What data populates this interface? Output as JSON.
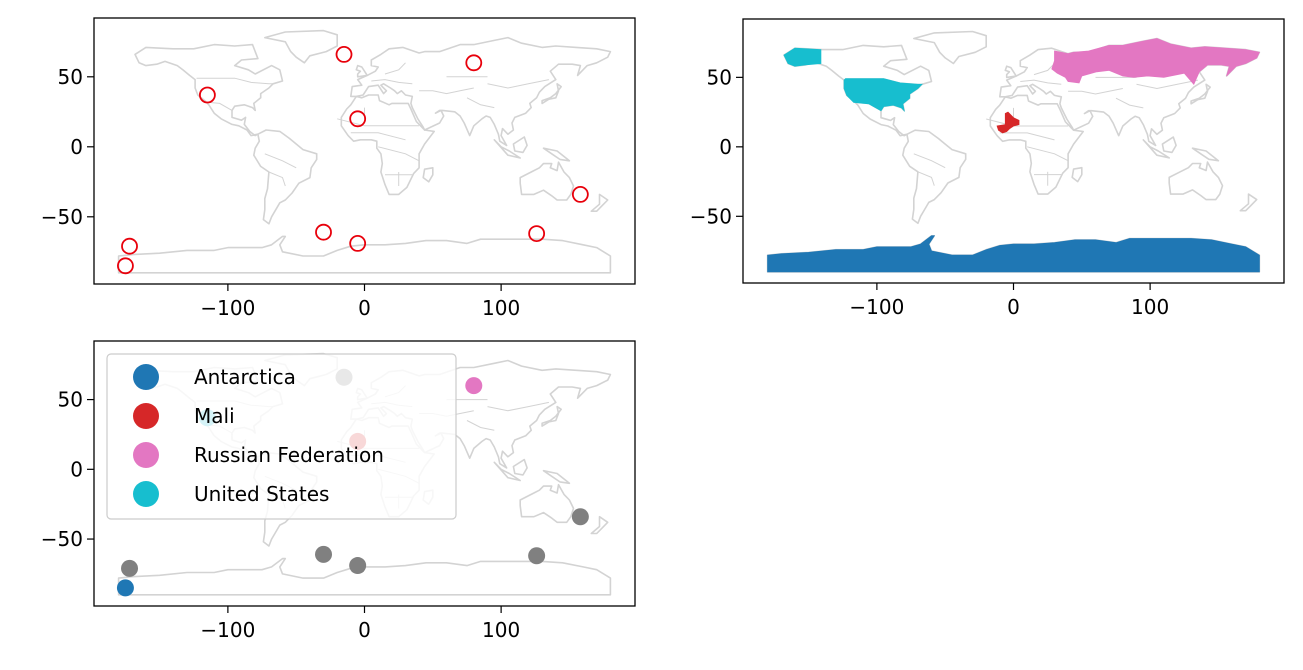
{
  "chart_data": [
    {
      "type": "scatter",
      "title": "",
      "xlabel": "",
      "ylabel": "",
      "xlim": [
        -198,
        198
      ],
      "ylim": [
        -98,
        92
      ],
      "x_ticks": [
        -100,
        0,
        100
      ],
      "y_ticks": [
        -50,
        0,
        50
      ],
      "x_tick_labels": [
        "−100",
        "0",
        "100"
      ],
      "y_tick_labels": [
        "−50",
        "0",
        "50"
      ],
      "background": "world country outlines",
      "outline_color": "#d3d3d3",
      "marker": "hollow circle",
      "marker_color": "#e8000b",
      "points": [
        {
          "x": -15,
          "y": 66
        },
        {
          "x": 80,
          "y": 60
        },
        {
          "x": -115,
          "y": 37
        },
        {
          "x": -5,
          "y": 20
        },
        {
          "x": 158,
          "y": -34
        },
        {
          "x": -30,
          "y": -61
        },
        {
          "x": 126,
          "y": -62
        },
        {
          "x": -5,
          "y": -69
        },
        {
          "x": -172,
          "y": -71
        },
        {
          "x": -175,
          "y": -85
        }
      ],
      "grid": false
    },
    {
      "type": "map",
      "title": "",
      "xlabel": "",
      "ylabel": "",
      "xlim": [
        -198,
        198
      ],
      "ylim": [
        -98,
        92
      ],
      "x_ticks": [
        -100,
        0,
        100
      ],
      "y_ticks": [
        -50,
        0,
        50
      ],
      "x_tick_labels": [
        "−100",
        "0",
        "100"
      ],
      "y_tick_labels": [
        "−50",
        "0",
        "50"
      ],
      "outline_color": "#d3d3d3",
      "highlighted_regions": [
        {
          "name": "Antarctica",
          "color": "#1f77b4"
        },
        {
          "name": "Mali",
          "color": "#d62728"
        },
        {
          "name": "Russian Federation",
          "color": "#e377c2"
        },
        {
          "name": "United States",
          "color": "#17becf"
        }
      ],
      "grid": false
    },
    {
      "type": "scatter",
      "title": "",
      "xlabel": "",
      "ylabel": "",
      "xlim": [
        -198,
        198
      ],
      "ylim": [
        -98,
        92
      ],
      "x_ticks": [
        -100,
        0,
        100
      ],
      "y_ticks": [
        -50,
        0,
        50
      ],
      "x_tick_labels": [
        "−100",
        "0",
        "100"
      ],
      "y_tick_labels": [
        "−50",
        "0",
        "50"
      ],
      "outline_color": "#d3d3d3",
      "legend_position": "upper-left",
      "legend": [
        {
          "label": "Antarctica",
          "color": "#1f77b4"
        },
        {
          "label": "Mali",
          "color": "#d62728"
        },
        {
          "label": "Russian Federation",
          "color": "#e377c2"
        },
        {
          "label": "United States",
          "color": "#17becf"
        }
      ],
      "points": [
        {
          "x": -15,
          "y": 66,
          "color": "#808080"
        },
        {
          "x": 80,
          "y": 60,
          "color": "#e377c2"
        },
        {
          "x": -115,
          "y": 37,
          "color": "#17becf"
        },
        {
          "x": -5,
          "y": 20,
          "color": "#d62728"
        },
        {
          "x": 158,
          "y": -34,
          "color": "#808080"
        },
        {
          "x": -30,
          "y": -61,
          "color": "#808080"
        },
        {
          "x": 126,
          "y": -62,
          "color": "#808080"
        },
        {
          "x": -5,
          "y": -69,
          "color": "#808080"
        },
        {
          "x": -172,
          "y": -71,
          "color": "#808080"
        },
        {
          "x": -175,
          "y": -85,
          "color": "#1f77b4"
        }
      ],
      "grid": false
    }
  ]
}
